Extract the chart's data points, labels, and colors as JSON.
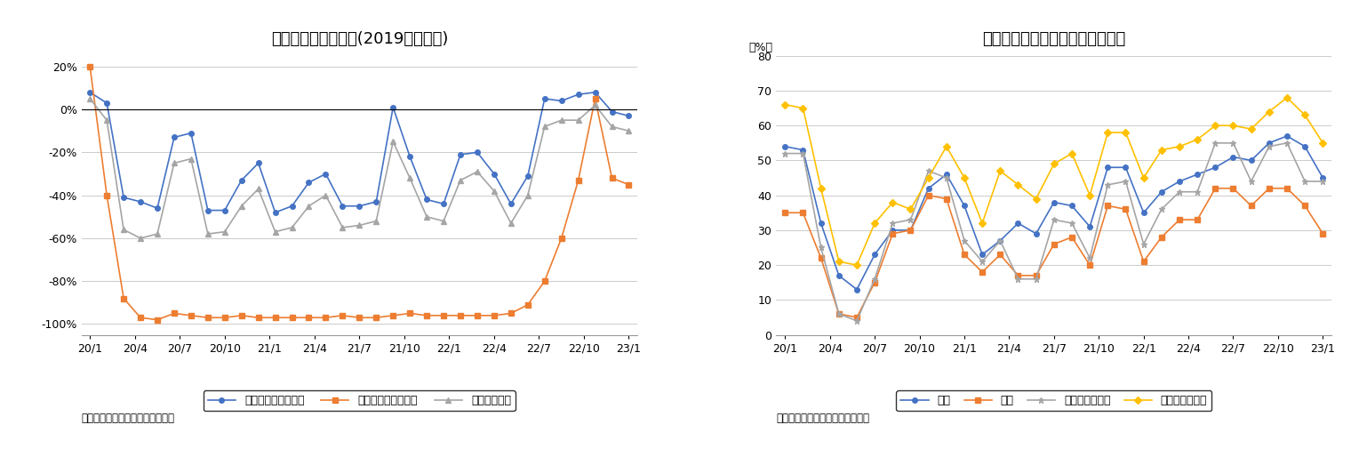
{
  "chart1_title": "延べ宿泊者数の推移(2019年同月比)",
  "chart1_source": "（出典）観光庁「宿泊旅行統計」",
  "chart1_ylabel_unit": "",
  "chart1_ylim": [
    -105,
    25
  ],
  "chart1_yticks": [
    -100,
    -80,
    -60,
    -40,
    -20,
    0,
    20
  ],
  "chart1_ytick_labels": [
    "-100%",
    "-80%",
    "-60%",
    "-40%",
    "-20%",
    "0%",
    "20%"
  ],
  "chart1_xtick_labels": [
    "20/1",
    "20/4",
    "20/7",
    "20/10",
    "21/1",
    "21/4",
    "21/7",
    "21/10",
    "22/1",
    "22/4",
    "22/7",
    "22/10",
    "23/1"
  ],
  "japanese_tourists": [
    8,
    3,
    -41,
    -43,
    -46,
    -13,
    -11,
    -47,
    -47,
    -33,
    -25,
    -48,
    -45,
    -34,
    -30,
    -45,
    -45,
    -43,
    1,
    -22,
    -42,
    -44,
    -21,
    -20,
    -30,
    -44,
    -31,
    5,
    4,
    7,
    8,
    -1,
    -3
  ],
  "foreign_tourists": [
    20,
    -40,
    -88,
    -97,
    -98,
    -95,
    -96,
    -97,
    -97,
    -96,
    -97,
    -97,
    -97,
    -97,
    -97,
    -96,
    -97,
    -97,
    -96,
    -95,
    -96,
    -96,
    -96,
    -96,
    -96,
    -95,
    -91,
    -80,
    -60,
    -33,
    5,
    -32,
    -35
  ],
  "total_tourists": [
    5,
    -5,
    -56,
    -60,
    -58,
    -25,
    -23,
    -58,
    -57,
    -45,
    -37,
    -57,
    -55,
    -45,
    -40,
    -55,
    -54,
    -52,
    -15,
    -32,
    -50,
    -52,
    -33,
    -29,
    -38,
    -53,
    -40,
    -8,
    -5,
    -5,
    2,
    -8,
    -10
  ],
  "chart2_title": "宿泊施設タイプ別客室稼働率推移",
  "chart2_source": "（出典）観光庁「宿泊旅行統計」",
  "chart2_ylabel_unit": "（%）",
  "chart2_ylim": [
    0,
    80
  ],
  "chart2_yticks": [
    0,
    10,
    20,
    30,
    40,
    50,
    60,
    70,
    80
  ],
  "chart2_xtick_labels": [
    "20/1",
    "20/4",
    "20/7",
    "20/10",
    "21/1",
    "21/4",
    "21/7",
    "21/10",
    "22/1",
    "22/4",
    "22/7",
    "22/10",
    "23/1"
  ],
  "zentai": [
    54,
    53,
    32,
    17,
    13,
    23,
    30,
    30,
    42,
    46,
    37,
    23,
    27,
    32,
    29,
    38,
    37,
    31,
    48,
    48,
    35,
    41,
    44,
    46,
    48,
    51,
    50,
    55,
    57,
    54,
    45
  ],
  "ryokan": [
    35,
    35,
    22,
    6,
    5,
    15,
    29,
    30,
    40,
    39,
    23,
    18,
    23,
    17,
    17,
    26,
    28,
    20,
    37,
    36,
    21,
    28,
    33,
    33,
    42,
    42,
    37,
    42,
    42,
    37,
    29
  ],
  "resort": [
    52,
    52,
    25,
    6,
    4,
    16,
    32,
    33,
    47,
    45,
    27,
    21,
    27,
    16,
    16,
    33,
    32,
    22,
    43,
    44,
    26,
    36,
    41,
    41,
    55,
    55,
    44,
    54,
    55,
    44,
    44
  ],
  "business": [
    66,
    65,
    42,
    21,
    20,
    32,
    38,
    36,
    45,
    54,
    45,
    32,
    47,
    43,
    39,
    49,
    52,
    40,
    58,
    58,
    45,
    53,
    54,
    56,
    60,
    60,
    59,
    64,
    68,
    63,
    55
  ],
  "color_japanese": "#4472c4",
  "color_foreign": "#ed7d31",
  "color_total": "#a5a5a5",
  "color_zentai": "#4472c4",
  "color_ryokan": "#ed7d31",
  "color_resort": "#a5a5a5",
  "color_business": "#ffc000",
  "legend1": [
    "日本人延べ宿泊者数",
    "外国人延べ宿泊者数",
    "延べ宿泊者数"
  ],
  "legend2": [
    "全体",
    "旅館",
    "リゾートホテル",
    "ビジネスホテル"
  ]
}
